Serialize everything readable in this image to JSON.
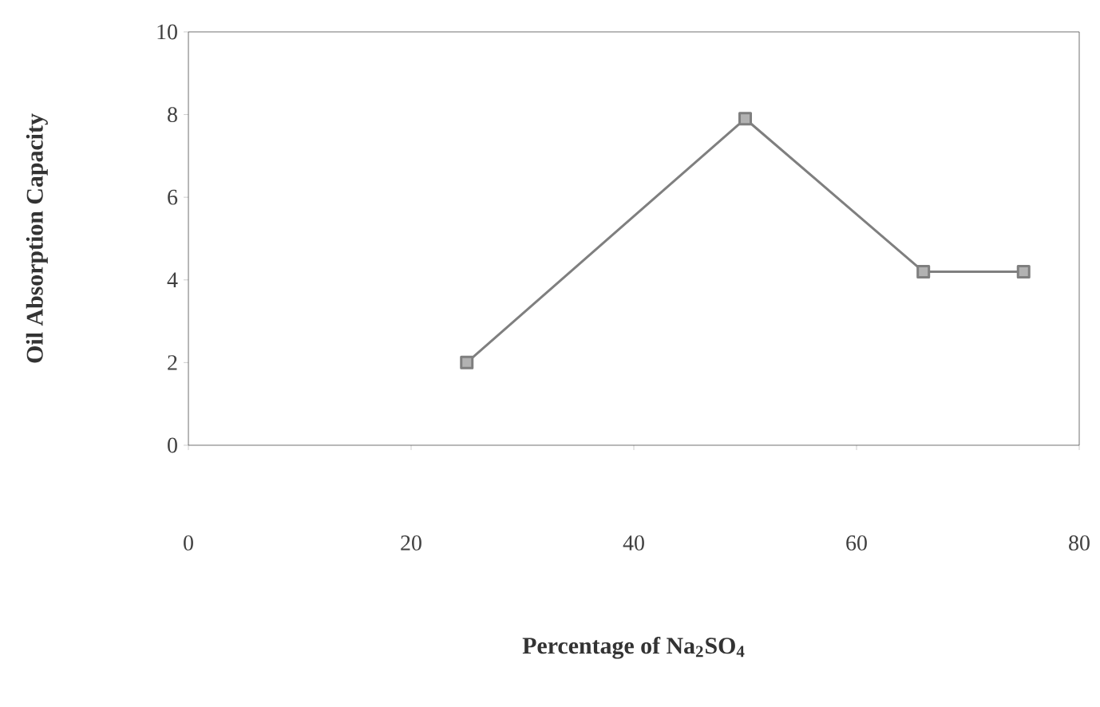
{
  "chart_data": {
    "type": "line",
    "xlabel": "Percentage of Na$_{2}$SO$_{4}$",
    "ylabel": "Oil Absorption Capacity",
    "x": [
      25,
      50,
      66,
      75
    ],
    "series": [
      {
        "color": "#7f7f7f",
        "values": [
          2.0,
          7.9,
          4.2,
          4.2
        ]
      }
    ],
    "xlim": [
      0,
      80
    ],
    "ylim": [
      0,
      10
    ],
    "xticks": [
      0,
      20,
      40,
      60,
      80
    ],
    "yticks": [
      0,
      2,
      4,
      6,
      8,
      10
    ],
    "marker": "square",
    "line_style": "solid"
  }
}
